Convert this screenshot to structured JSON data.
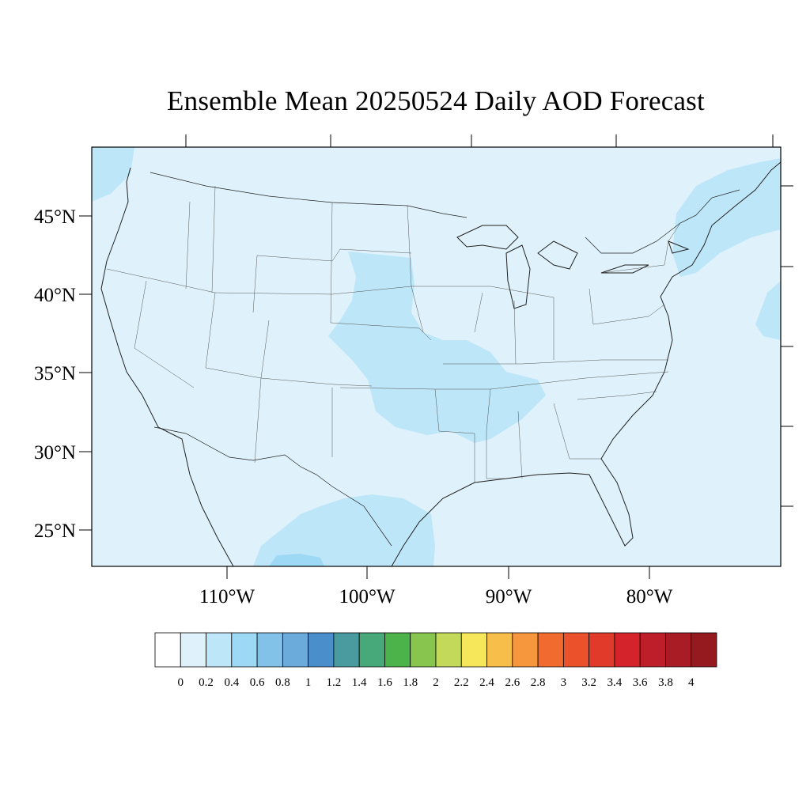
{
  "title": "Ensemble Mean 20250524 Daily AOD Forecast",
  "map": {
    "lat_labels": [
      "45°N",
      "40°N",
      "35°N",
      "30°N",
      "25°N"
    ],
    "lon_labels": [
      "110°W",
      "100°W",
      "90°W",
      "80°W"
    ]
  },
  "colorbar": {
    "labels": [
      "0",
      "0.2",
      "0.4",
      "0.6",
      "0.8",
      "1",
      "1.2",
      "1.4",
      "1.6",
      "1.8",
      "2",
      "2.2",
      "2.4",
      "2.6",
      "2.8",
      "3",
      "3.2",
      "3.4",
      "3.6",
      "3.8",
      "4"
    ],
    "colors": [
      "#ffffff",
      "#dff2fb",
      "#bde6f8",
      "#9dd8f5",
      "#82c2e8",
      "#6aabdc",
      "#4b8ecc",
      "#4a9ba0",
      "#47a87a",
      "#4bb34a",
      "#88c54e",
      "#c3d95a",
      "#f5e65a",
      "#f7bf4a",
      "#f6963d",
      "#f26b2e",
      "#eb512b",
      "#e13a2a",
      "#d4232b",
      "#be1e2a",
      "#aa1c25",
      "#951a1f"
    ]
  },
  "field": {
    "background_color": "#dff2fb",
    "elevated_color": "#bde6f8",
    "peak_color": "#9dd8f5"
  }
}
